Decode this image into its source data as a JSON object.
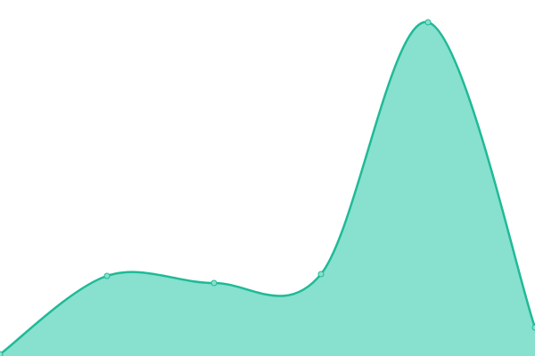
{
  "chart_data": {
    "type": "area",
    "categories": [
      null,
      null,
      null,
      null,
      null,
      null
    ],
    "values": [
      2,
      90,
      82,
      92,
      375,
      32
    ],
    "ylim": [
      0,
      400
    ],
    "line_color": "#1fba96",
    "fill_color": "#88e0cf",
    "smooth": true,
    "markers": true
  }
}
